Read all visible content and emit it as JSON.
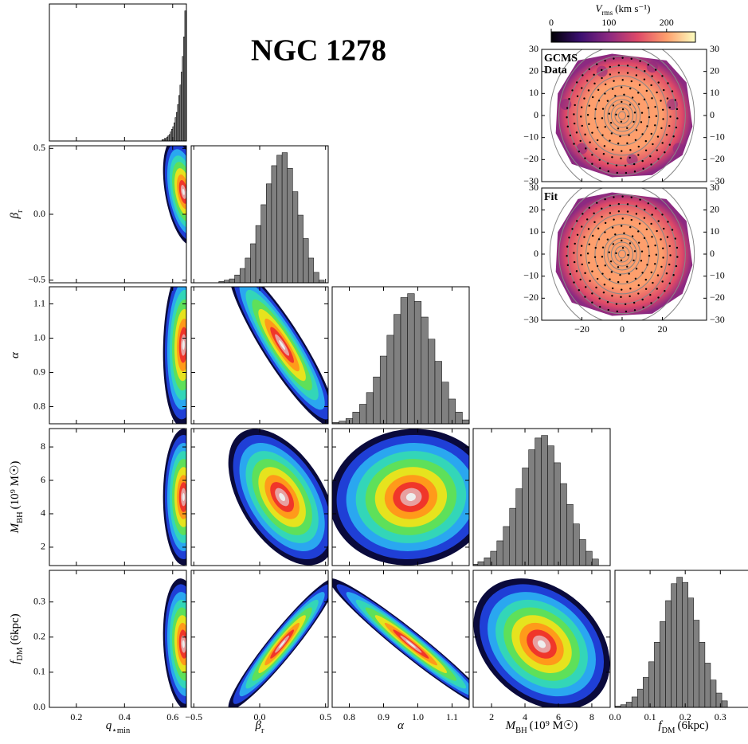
{
  "chart_data": [
    {
      "type": "corner",
      "title": "NGC 1278",
      "hist_color": "#808080",
      "density_colors": [
        "#0a0a3c",
        "#1f3fd6",
        "#2aa7f0",
        "#33d6b8",
        "#5ee05a",
        "#e6e31e",
        "#ff9a1a",
        "#f0362a",
        "#e8a0a0",
        "#eeeeee"
      ],
      "parameters": [
        {
          "label": {
            "base": "q",
            "sub": "⋆min"
          },
          "lim": [
            0.088,
            0.657
          ],
          "ticks": [
            0.2,
            0.4,
            0.6
          ],
          "mean": 0.645,
          "sigma": 0.025,
          "bins": [
            0.555,
            0.56,
            0.565,
            0.57,
            0.575,
            0.58,
            0.585,
            0.59,
            0.595,
            0.6,
            0.605,
            0.61,
            0.615,
            0.62,
            0.625,
            0.63,
            0.635,
            0.64,
            0.645,
            0.65,
            0.655
          ],
          "counts": [
            1,
            1,
            2,
            2,
            3,
            4,
            5,
            7,
            9,
            11,
            14,
            18,
            22,
            28,
            35,
            43,
            53,
            65,
            80,
            100
          ]
        },
        {
          "label": {
            "base": "β",
            "sub": "r"
          },
          "lim": [
            -0.52,
            0.52
          ],
          "ticks": [
            {
              "value": -0.5,
              "label": "−0.5"
            },
            {
              "value": 0,
              "label": "0.0"
            },
            0.5
          ],
          "mean": 0.17,
          "sigma": 0.12,
          "correlations": [
            -0.4
          ],
          "bins": [
            -0.31,
            -0.27,
            -0.23,
            -0.19,
            -0.15,
            -0.11,
            -0.07,
            -0.03,
            0.01,
            0.05,
            0.09,
            0.13,
            0.17,
            0.21,
            0.25,
            0.29,
            0.33,
            0.37,
            0.41,
            0.45,
            0.49
          ],
          "counts": [
            1,
            2,
            3,
            6,
            11,
            19,
            30,
            44,
            60,
            76,
            90,
            98,
            100,
            88,
            70,
            52,
            34,
            19,
            8,
            2
          ]
        },
        {
          "label": {
            "base": "α"
          },
          "lim": [
            0.75,
            1.15
          ],
          "ticks": [
            0.8,
            0.9,
            {
              "value": 1,
              "label": "1.0"
            },
            1.1
          ],
          "mean": 0.98,
          "sigma": 0.07,
          "correlations": [
            0.1,
            -0.9
          ],
          "bins": [
            0.75,
            0.77,
            0.79,
            0.81,
            0.83,
            0.85,
            0.87,
            0.89,
            0.91,
            0.93,
            0.95,
            0.97,
            0.99,
            1.01,
            1.03,
            1.05,
            1.07,
            1.09,
            1.11,
            1.13,
            1.15
          ],
          "counts": [
            1,
            2,
            4,
            9,
            15,
            24,
            36,
            52,
            68,
            84,
            97,
            100,
            94,
            82,
            65,
            48,
            32,
            19,
            9,
            3
          ]
        },
        {
          "label": {
            "base": "M",
            "sub": "BH",
            "unit": "(10⁹ M☉)"
          },
          "lim": [
            0.9,
            9.1
          ],
          "ticks": [
            2,
            4,
            6,
            8
          ],
          "mean": 5.0,
          "sigma": 1.2,
          "correlations": [
            0,
            -0.5,
            0.05
          ],
          "bins": [
            0.8,
            1.18,
            1.56,
            1.94,
            2.32,
            2.7,
            3.08,
            3.46,
            3.84,
            4.22,
            4.6,
            4.98,
            5.36,
            5.74,
            6.12,
            6.5,
            6.88,
            7.26,
            7.64,
            8.02,
            8.4
          ],
          "counts": [
            1,
            3,
            6,
            11,
            19,
            30,
            44,
            59,
            75,
            89,
            98,
            100,
            92,
            79,
            63,
            47,
            32,
            20,
            11,
            5
          ]
        },
        {
          "label": {
            "base": "f",
            "sub": "DM",
            "unit": "(6kpc)"
          },
          "lim": [
            0,
            0.39
          ],
          "ticks": [
            {
              "value": 0,
              "label": "0.0"
            },
            0.1,
            0.2,
            0.3
          ],
          "mean": 0.18,
          "sigma": 0.055,
          "correlations": [
            -0.15,
            0.95,
            -0.97,
            -0.3
          ],
          "bins": [
            0,
            0.016,
            0.032,
            0.048,
            0.064,
            0.08,
            0.096,
            0.112,
            0.128,
            0.144,
            0.16,
            0.176,
            0.192,
            0.208,
            0.224,
            0.24,
            0.256,
            0.272,
            0.288,
            0.304,
            0.32
          ],
          "counts": [
            1,
            2,
            4,
            8,
            14,
            23,
            35,
            50,
            66,
            82,
            95,
            100,
            96,
            84,
            67,
            50,
            34,
            21,
            11,
            5
          ]
        }
      ]
    },
    {
      "type": "map",
      "colorbar": {
        "label": {
          "base": "V",
          "sub": "rms",
          "unit": "(km s⁻¹)"
        },
        "lim": [
          0,
          250
        ],
        "ticks": [
          0,
          100,
          200
        ],
        "colors": [
          "#000004",
          "#3b0f70",
          "#8c2981",
          "#de4968",
          "#fe9f6d",
          "#fcfdbf"
        ]
      },
      "xlim": [
        -40,
        42
      ],
      "ylim": [
        -30,
        30
      ],
      "xticks": [
        {
          "value": -20,
          "label": "−20"
        },
        0,
        20
      ],
      "yticks": [
        {
          "value": -30,
          "label": "−30"
        },
        {
          "value": -20,
          "label": "−20"
        },
        {
          "value": -10,
          "label": "−10"
        },
        0,
        10,
        20,
        30
      ],
      "panels": [
        {
          "label_lines": [
            "GCMS",
            "Data"
          ]
        },
        {
          "label_lines": [
            "Fit"
          ]
        }
      ]
    }
  ]
}
